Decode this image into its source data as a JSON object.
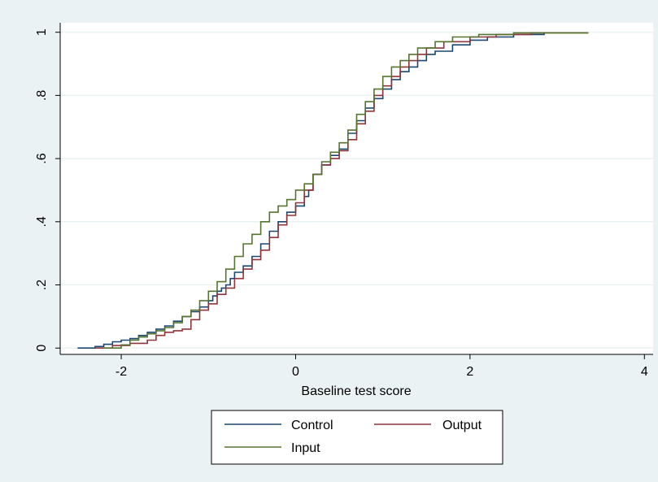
{
  "colors": {
    "background": "#eaf2f3",
    "plot_background": "#ffffff",
    "grid": "#eaf2f3",
    "axis": "#000000"
  },
  "chart_data": {
    "type": "line",
    "title": "",
    "xlabel": "Baseline test score",
    "ylabel": "",
    "xlim": [
      -2.7,
      4.1
    ],
    "ylim": [
      -0.02,
      1.03
    ],
    "xticks": [
      -2,
      0,
      2,
      4
    ],
    "xtick_labels": [
      "-2",
      "0",
      "2",
      "4"
    ],
    "yticks": [
      0,
      0.2,
      0.4,
      0.6,
      0.8,
      1
    ],
    "ytick_labels": [
      "0",
      ".2",
      ".4",
      ".6",
      ".8",
      "1"
    ],
    "grid": true,
    "legend_position": "bottom",
    "step": true,
    "series": [
      {
        "name": "Control",
        "color": "#1a476f",
        "points": [
          [
            -2.5,
            0.0
          ],
          [
            -2.3,
            0.005
          ],
          [
            -2.2,
            0.012
          ],
          [
            -2.1,
            0.02
          ],
          [
            -2.0,
            0.025
          ],
          [
            -1.9,
            0.03
          ],
          [
            -1.8,
            0.04
          ],
          [
            -1.7,
            0.05
          ],
          [
            -1.6,
            0.06
          ],
          [
            -1.5,
            0.07
          ],
          [
            -1.4,
            0.085
          ],
          [
            -1.3,
            0.1
          ],
          [
            -1.2,
            0.115
          ],
          [
            -1.1,
            0.13
          ],
          [
            -1.0,
            0.15
          ],
          [
            -0.95,
            0.165
          ],
          [
            -0.9,
            0.18
          ],
          [
            -0.85,
            0.19
          ],
          [
            -0.8,
            0.2
          ],
          [
            -0.75,
            0.22
          ],
          [
            -0.7,
            0.24
          ],
          [
            -0.6,
            0.26
          ],
          [
            -0.5,
            0.29
          ],
          [
            -0.4,
            0.33
          ],
          [
            -0.3,
            0.37
          ],
          [
            -0.2,
            0.4
          ],
          [
            -0.1,
            0.43
          ],
          [
            0.0,
            0.45
          ],
          [
            0.1,
            0.48
          ],
          [
            0.15,
            0.5
          ],
          [
            0.2,
            0.55
          ],
          [
            0.3,
            0.58
          ],
          [
            0.4,
            0.61
          ],
          [
            0.5,
            0.63
          ],
          [
            0.6,
            0.68
          ],
          [
            0.7,
            0.72
          ],
          [
            0.8,
            0.76
          ],
          [
            0.9,
            0.79
          ],
          [
            1.0,
            0.82
          ],
          [
            1.1,
            0.85
          ],
          [
            1.2,
            0.875
          ],
          [
            1.3,
            0.89
          ],
          [
            1.4,
            0.91
          ],
          [
            1.5,
            0.93
          ],
          [
            1.6,
            0.94
          ],
          [
            1.8,
            0.96
          ],
          [
            2.0,
            0.975
          ],
          [
            2.2,
            0.985
          ],
          [
            2.5,
            0.993
          ],
          [
            2.85,
            1.0
          ]
        ]
      },
      {
        "name": "Output",
        "color": "#90353b",
        "points": [
          [
            -2.3,
            0.0
          ],
          [
            -2.1,
            0.008
          ],
          [
            -1.9,
            0.015
          ],
          [
            -1.7,
            0.025
          ],
          [
            -1.6,
            0.04
          ],
          [
            -1.5,
            0.05
          ],
          [
            -1.4,
            0.055
          ],
          [
            -1.3,
            0.06
          ],
          [
            -1.2,
            0.09
          ],
          [
            -1.1,
            0.12
          ],
          [
            -1.0,
            0.14
          ],
          [
            -0.9,
            0.17
          ],
          [
            -0.8,
            0.19
          ],
          [
            -0.7,
            0.22
          ],
          [
            -0.6,
            0.25
          ],
          [
            -0.5,
            0.28
          ],
          [
            -0.4,
            0.31
          ],
          [
            -0.3,
            0.35
          ],
          [
            -0.2,
            0.39
          ],
          [
            -0.1,
            0.42
          ],
          [
            0.0,
            0.46
          ],
          [
            0.1,
            0.5
          ],
          [
            0.2,
            0.55
          ],
          [
            0.3,
            0.58
          ],
          [
            0.4,
            0.6
          ],
          [
            0.5,
            0.625
          ],
          [
            0.6,
            0.66
          ],
          [
            0.7,
            0.71
          ],
          [
            0.8,
            0.75
          ],
          [
            0.9,
            0.8
          ],
          [
            1.0,
            0.83
          ],
          [
            1.1,
            0.86
          ],
          [
            1.2,
            0.89
          ],
          [
            1.3,
            0.91
          ],
          [
            1.4,
            0.93
          ],
          [
            1.5,
            0.95
          ],
          [
            1.7,
            0.97
          ],
          [
            2.0,
            0.985
          ],
          [
            2.3,
            0.993
          ],
          [
            2.7,
            0.998
          ],
          [
            3.35,
            1.0
          ]
        ]
      },
      {
        "name": "Input",
        "color": "#55752f",
        "points": [
          [
            -2.2,
            0.0
          ],
          [
            -2.0,
            0.01
          ],
          [
            -1.9,
            0.025
          ],
          [
            -1.8,
            0.035
          ],
          [
            -1.7,
            0.045
          ],
          [
            -1.6,
            0.055
          ],
          [
            -1.5,
            0.065
          ],
          [
            -1.4,
            0.08
          ],
          [
            -1.3,
            0.1
          ],
          [
            -1.2,
            0.12
          ],
          [
            -1.1,
            0.15
          ],
          [
            -1.0,
            0.18
          ],
          [
            -0.9,
            0.21
          ],
          [
            -0.8,
            0.25
          ],
          [
            -0.7,
            0.29
          ],
          [
            -0.6,
            0.33
          ],
          [
            -0.5,
            0.36
          ],
          [
            -0.4,
            0.4
          ],
          [
            -0.3,
            0.43
          ],
          [
            -0.2,
            0.45
          ],
          [
            -0.1,
            0.47
          ],
          [
            0.0,
            0.5
          ],
          [
            0.1,
            0.52
          ],
          [
            0.2,
            0.55
          ],
          [
            0.3,
            0.59
          ],
          [
            0.4,
            0.62
          ],
          [
            0.5,
            0.65
          ],
          [
            0.6,
            0.69
          ],
          [
            0.7,
            0.74
          ],
          [
            0.8,
            0.78
          ],
          [
            0.9,
            0.82
          ],
          [
            1.0,
            0.86
          ],
          [
            1.1,
            0.89
          ],
          [
            1.2,
            0.91
          ],
          [
            1.3,
            0.93
          ],
          [
            1.4,
            0.95
          ],
          [
            1.6,
            0.97
          ],
          [
            1.8,
            0.985
          ],
          [
            2.1,
            0.993
          ],
          [
            2.5,
            0.998
          ],
          [
            3.35,
            1.0
          ]
        ]
      }
    ]
  }
}
